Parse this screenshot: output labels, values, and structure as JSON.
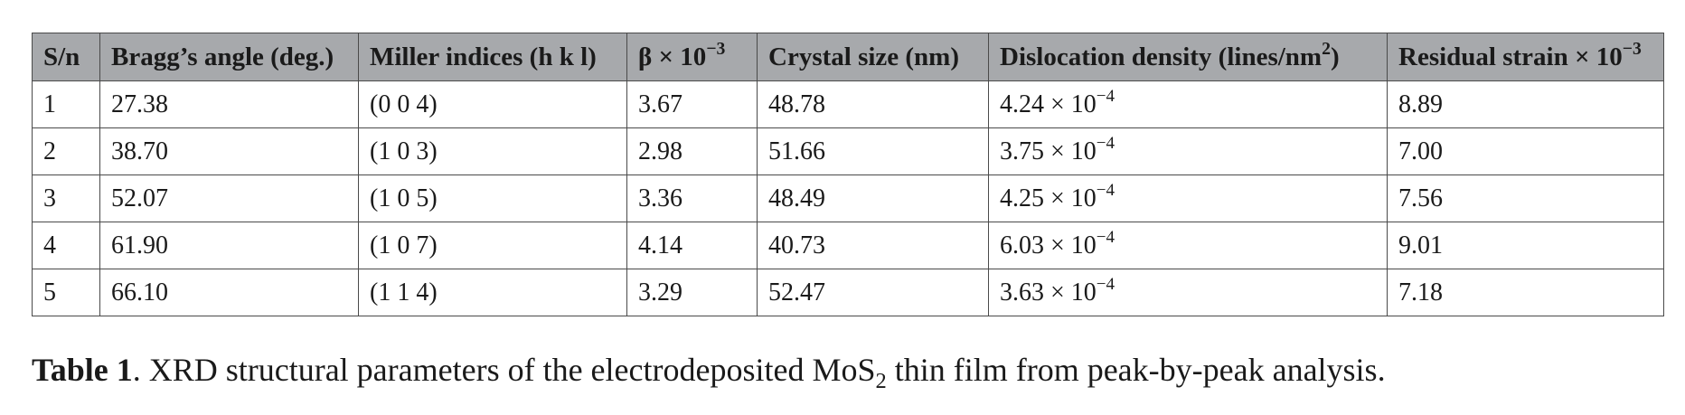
{
  "table": {
    "headers": {
      "sn": "S/n",
      "bragg": "Bragg’s angle (deg.)",
      "miller": "Miller indices (h k l)",
      "beta_prefix": "β × 10",
      "beta_exp": "−3",
      "crystal": "Crystal size (nm)",
      "dislocation_prefix": "Dislocation density (lines/nm",
      "dislocation_exp": "2",
      "dislocation_suffix": ")",
      "strain_prefix": "Residual strain × 10",
      "strain_exp": "−3"
    },
    "rows": [
      {
        "sn": "1",
        "bragg": "27.38",
        "miller": "(0 0 4)",
        "beta": "3.67",
        "crystal": "48.78",
        "disl_mantissa": "4.24 × 10",
        "disl_exp": "−4",
        "strain": "8.89"
      },
      {
        "sn": "2",
        "bragg": "38.70",
        "miller": "(1 0 3)",
        "beta": "2.98",
        "crystal": "51.66",
        "disl_mantissa": "3.75 × 10",
        "disl_exp": "−4",
        "strain": "7.00"
      },
      {
        "sn": "3",
        "bragg": "52.07",
        "miller": "(1 0 5)",
        "beta": "3.36",
        "crystal": "48.49",
        "disl_mantissa": "4.25 × 10",
        "disl_exp": "−4",
        "strain": "7.56"
      },
      {
        "sn": "4",
        "bragg": "61.90",
        "miller": "(1 0 7)",
        "beta": "4.14",
        "crystal": "40.73",
        "disl_mantissa": "6.03 × 10",
        "disl_exp": "−4",
        "strain": "9.01"
      },
      {
        "sn": "5",
        "bragg": "66.10",
        "miller": "(1 1 4)",
        "beta": "3.29",
        "crystal": "52.47",
        "disl_mantissa": "3.63 × 10",
        "disl_exp": "−4",
        "strain": "7.18"
      }
    ]
  },
  "caption": {
    "label": "Table 1",
    "text_before": ".  XRD structural parameters of the electrodeposited MoS",
    "subscript": "2",
    "text_after": " thin film from peak-by-peak analysis."
  },
  "colors": {
    "header_bg": "#a7a9ac",
    "border": "#4a4a4a",
    "text": "#1a1a1a"
  }
}
